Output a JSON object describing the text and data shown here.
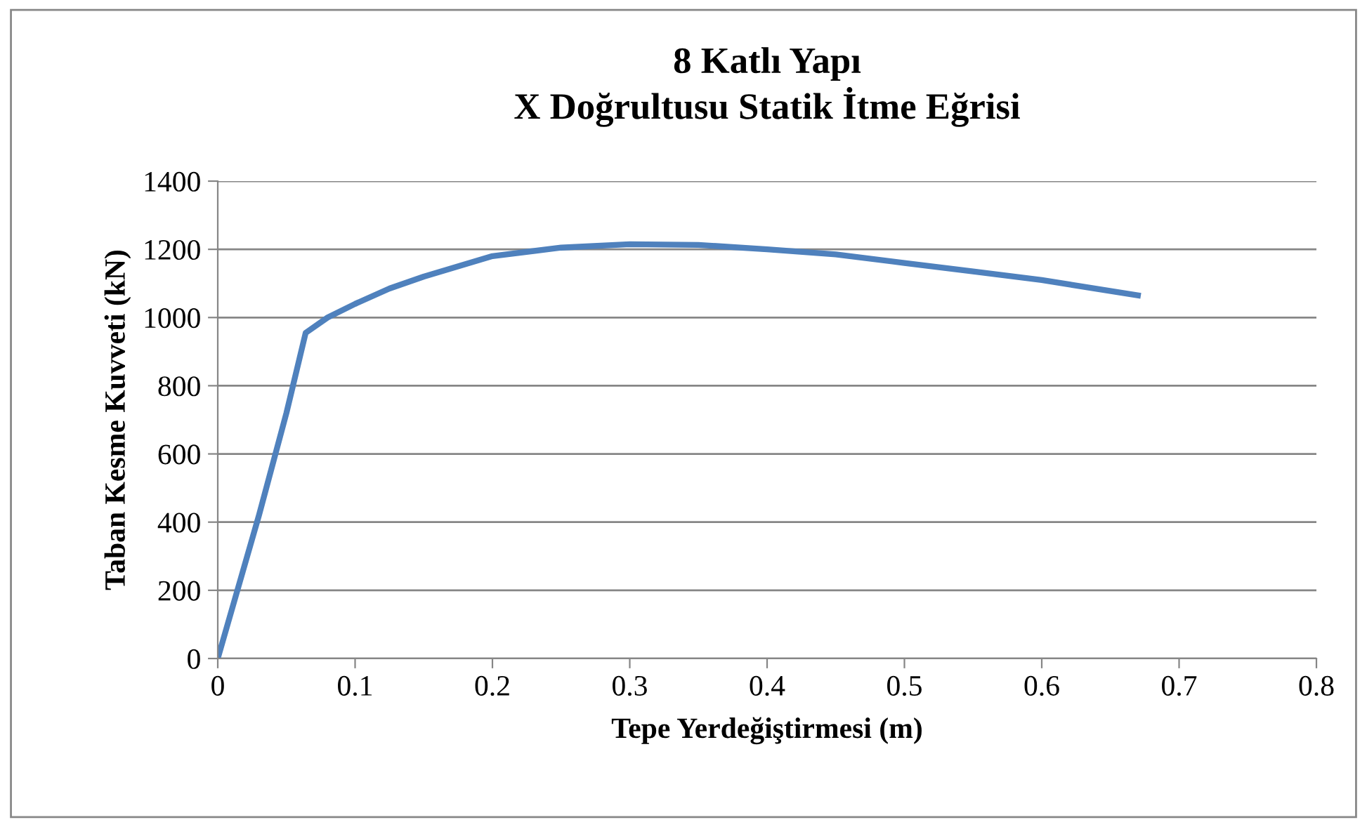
{
  "chart_data": {
    "type": "line",
    "title": "8 Katlı Yapı\nX Doğrultusu Statik İtme Eğrisi",
    "xlabel": "Tepe Yerdeğiştirmesi (m)",
    "ylabel": "Taban Kesme Kuvveti (kN)",
    "series": [
      {
        "color": "#4f81bd",
        "x": [
          0,
          0.03,
          0.05,
          0.064,
          0.08,
          0.1,
          0.125,
          0.15,
          0.2,
          0.25,
          0.3,
          0.35,
          0.4,
          0.45,
          0.5,
          0.55,
          0.6,
          0.67
        ],
        "values": [
          0,
          420,
          720,
          955,
          1000,
          1040,
          1085,
          1120,
          1180,
          1205,
          1215,
          1213,
          1200,
          1185,
          1160,
          1135,
          1110,
          1065
        ]
      }
    ],
    "xlim": [
      0,
      0.8
    ],
    "xticks": [
      0,
      0.1,
      0.2,
      0.3,
      0.4,
      0.5,
      0.6,
      0.7,
      0.8
    ],
    "ylim": [
      0,
      1400
    ],
    "yticks": [
      0,
      200,
      400,
      600,
      800,
      1000,
      1200,
      1400
    ],
    "grid": "y",
    "legend": false,
    "marker": "none",
    "line_style": "solid"
  }
}
